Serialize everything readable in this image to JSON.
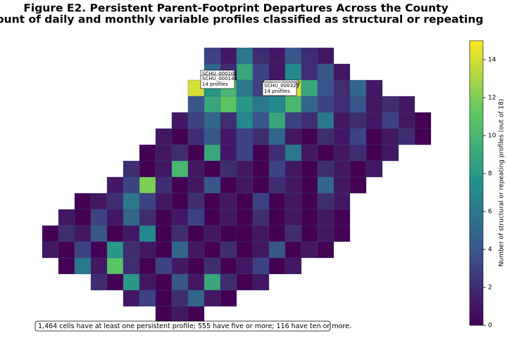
{
  "chart_data": {
    "type": "heatmap",
    "title": "Figure E2. Persistent Parent-Footprint Departures Across the County",
    "subtitle": "Count of daily and monthly variable profiles classified as structural or repeating",
    "colorbar_label": "Number of structural or repeating profiles (out of 18)",
    "colormap": "viridis",
    "clim": [
      0,
      15
    ],
    "cticks": [
      0,
      2,
      4,
      6,
      8,
      10,
      12,
      14
    ],
    "grid_values": [
      [
        null,
        null,
        null,
        null,
        null,
        null,
        null,
        null,
        null,
        null,
        3,
        1,
        6,
        2,
        1,
        4,
        2,
        1,
        null,
        null,
        null,
        null,
        null,
        null
      ],
      [
        null,
        null,
        null,
        null,
        null,
        null,
        null,
        null,
        null,
        null,
        5,
        2,
        9,
        3,
        1,
        7,
        2,
        4,
        1,
        null,
        null,
        null,
        null,
        null
      ],
      [
        null,
        null,
        null,
        null,
        null,
        null,
        null,
        null,
        null,
        14,
        8,
        10,
        6,
        3,
        2,
        14,
        9,
        4,
        2,
        5,
        1,
        null,
        null,
        null
      ],
      [
        null,
        null,
        null,
        null,
        null,
        null,
        null,
        null,
        null,
        4,
        9,
        11,
        8,
        6,
        7,
        10,
        5,
        3,
        2,
        4,
        1,
        2,
        1,
        null
      ],
      [
        null,
        null,
        null,
        null,
        null,
        null,
        null,
        null,
        1,
        3,
        5,
        2,
        7,
        4,
        9,
        3,
        2,
        6,
        1,
        2,
        1,
        3,
        1,
        0
      ],
      [
        null,
        null,
        null,
        null,
        null,
        null,
        null,
        1,
        0,
        2,
        4,
        1,
        3,
        2,
        5,
        1,
        0,
        2,
        1,
        3,
        0,
        1,
        2,
        0
      ],
      [
        null,
        null,
        null,
        null,
        null,
        null,
        0,
        1,
        2,
        0,
        9,
        1,
        3,
        0,
        2,
        6,
        1,
        0,
        1,
        2,
        0,
        1,
        null,
        null
      ],
      [
        null,
        null,
        null,
        null,
        null,
        2,
        0,
        1,
        10,
        1,
        0,
        2,
        1,
        0,
        3,
        1,
        0,
        2,
        1,
        0,
        1,
        null,
        null,
        null
      ],
      [
        null,
        null,
        null,
        null,
        1,
        3,
        12,
        2,
        0,
        1,
        4,
        0,
        1,
        0,
        2,
        1,
        0,
        5,
        1,
        0,
        null,
        null,
        null,
        null
      ],
      [
        null,
        null,
        0,
        1,
        2,
        6,
        3,
        1,
        0,
        2,
        0,
        1,
        0,
        3,
        0,
        1,
        0,
        2,
        1,
        null,
        null,
        null,
        null,
        null
      ],
      [
        null,
        1,
        0,
        3,
        1,
        5,
        2,
        0,
        1,
        3,
        0,
        1,
        0,
        2,
        0,
        1,
        0,
        1,
        0,
        null,
        null,
        null,
        null,
        null
      ],
      [
        0,
        2,
        1,
        4,
        0,
        1,
        7,
        0,
        2,
        0,
        1,
        0,
        0,
        1,
        0,
        2,
        0,
        1,
        0,
        null,
        null,
        null,
        null,
        null
      ],
      [
        1,
        0,
        3,
        0,
        8,
        2,
        1,
        0,
        5,
        1,
        0,
        2,
        0,
        1,
        4,
        0,
        1,
        0,
        null,
        null,
        null,
        null,
        null,
        null
      ],
      [
        null,
        0,
        6,
        1,
        11,
        2,
        0,
        3,
        1,
        0,
        2,
        0,
        1,
        3,
        0,
        1,
        null,
        null,
        null,
        null,
        null,
        null,
        null,
        null
      ],
      [
        null,
        null,
        null,
        2,
        0,
        8,
        1,
        0,
        4,
        1,
        9,
        2,
        0,
        1,
        null,
        null,
        null,
        null,
        null,
        null,
        null,
        null,
        null,
        null
      ],
      [
        null,
        null,
        null,
        null,
        null,
        1,
        3,
        0,
        2,
        5,
        1,
        0,
        null,
        null,
        null,
        null,
        null,
        null,
        null,
        null,
        null,
        null,
        null,
        null
      ],
      [
        null,
        null,
        null,
        null,
        null,
        null,
        null,
        0,
        1,
        0,
        null,
        null,
        null,
        null,
        null,
        null,
        null,
        null,
        null,
        null,
        null,
        null,
        null,
        null
      ]
    ],
    "annotations": [
      {
        "lines": [
          "SCHU_000105"
        ]
      },
      {
        "lines": [
          "SCHU_000143",
          "14 profiles"
        ]
      },
      {
        "lines": [
          "SCHU_000327"
        ]
      },
      {
        "lines": [
          "SCHU_000325",
          "14 profiles"
        ]
      }
    ],
    "footnote": "1,464 cells have at least one persistent profile; 555 have five or more; 116 have ten or more."
  }
}
